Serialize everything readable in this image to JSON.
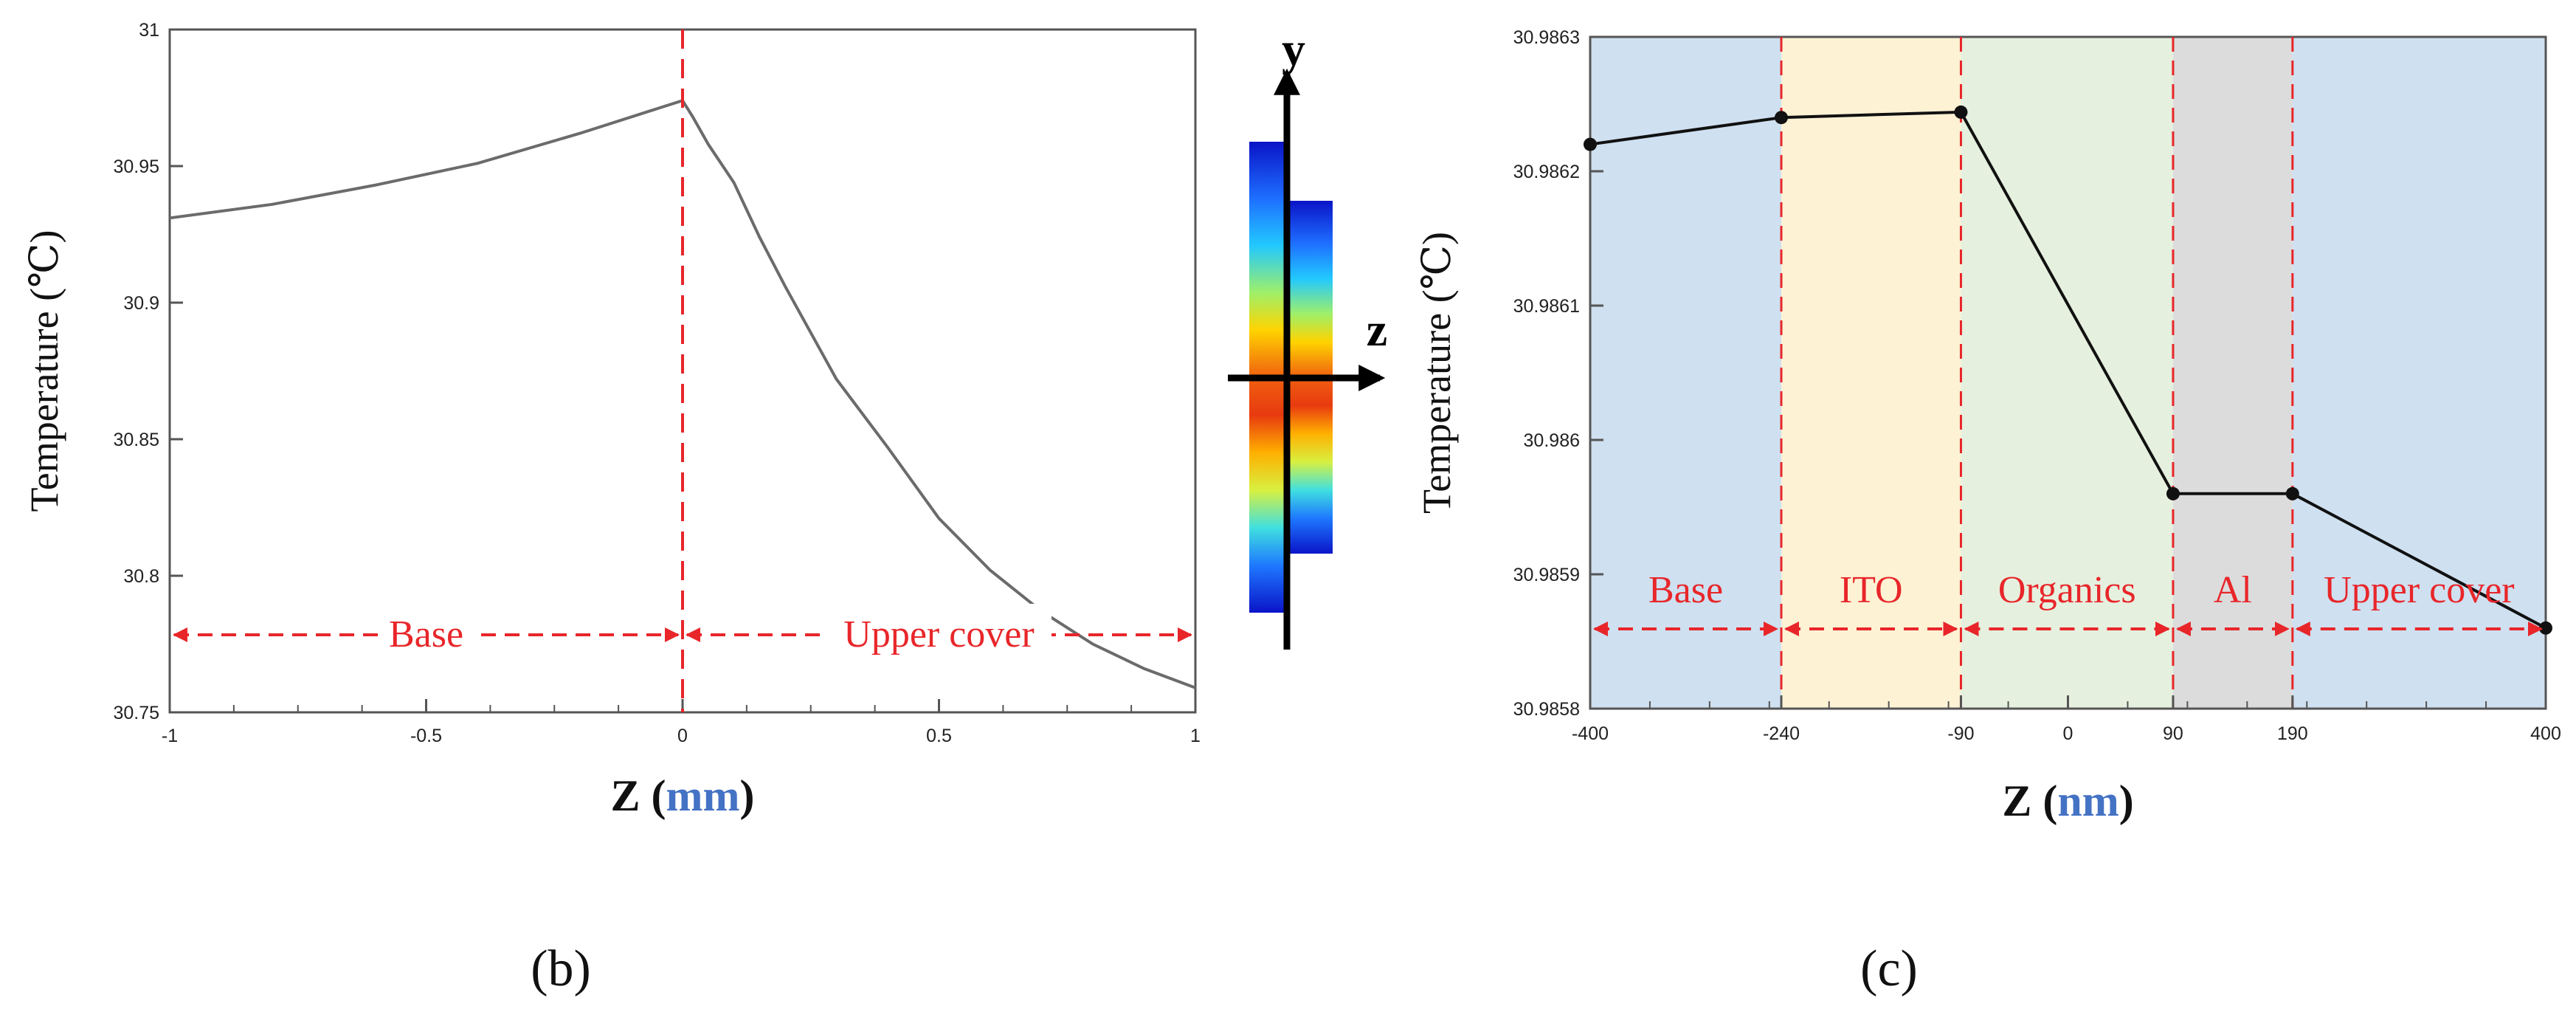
{
  "chart_data": [
    {
      "type": "line",
      "panel_label": "(b)",
      "xlabel": "Z",
      "xunit": "mm",
      "ylabel": "Temperature (℃)",
      "xlim": [
        -1,
        1
      ],
      "ylim": [
        30.75,
        31
      ],
      "xticks": [
        "-1",
        "-0.5",
        "0",
        "0.5",
        "1"
      ],
      "yticks": [
        "30.75",
        "30.8",
        "30.85",
        "30.9",
        "30.95",
        "31"
      ],
      "x": [
        -1,
        -0.8,
        -0.6,
        -0.4,
        -0.2,
        0,
        0.02,
        0.05,
        0.1,
        0.15,
        0.2,
        0.3,
        0.4,
        0.5,
        0.6,
        0.7,
        0.8,
        0.9,
        1
      ],
      "y": [
        30.931,
        30.936,
        30.943,
        30.951,
        30.962,
        30.974,
        30.968,
        30.958,
        30.944,
        30.924,
        30.906,
        30.872,
        30.847,
        30.821,
        30.802,
        30.787,
        30.775,
        30.766,
        30.759
      ],
      "regions": [
        {
          "label": "Base",
          "from": -1,
          "to": 0
        },
        {
          "label": "Upper cover",
          "from": 0,
          "to": 1
        }
      ],
      "divider_x": 0,
      "inset": {
        "axis_labels": [
          "y",
          "z"
        ]
      }
    },
    {
      "type": "line",
      "panel_label": "(c)",
      "xlabel": "Z",
      "xunit": "nm",
      "ylabel": "Temperature (℃)",
      "xticks": [
        "-400",
        "-240",
        "-90",
        "0",
        "90",
        "190",
        "400"
      ],
      "yticks": [
        "30.9858",
        "30.9859",
        "30.986",
        "30.9861",
        "30.9862",
        "30.9863"
      ],
      "ylim": [
        30.9858,
        30.9863
      ],
      "x": [
        -400,
        -240,
        -90,
        90,
        190,
        400
      ],
      "y": [
        30.98622,
        30.98624,
        30.986244,
        30.98596,
        30.98596,
        30.98586
      ],
      "regions": [
        {
          "label": "Base",
          "from": -400,
          "to": -240,
          "color": "#cfe0f0"
        },
        {
          "label": "ITO",
          "from": -240,
          "to": -90,
          "color": "#fdf2d4"
        },
        {
          "label": "Organics",
          "from": -90,
          "to": 90,
          "color": "#e6f0df"
        },
        {
          "label": "Al",
          "from": 90,
          "to": 190,
          "color": "#dcdcdc"
        },
        {
          "label": "Upper cover",
          "from": 190,
          "to": 400,
          "color": "#cfe0f0"
        }
      ]
    }
  ]
}
